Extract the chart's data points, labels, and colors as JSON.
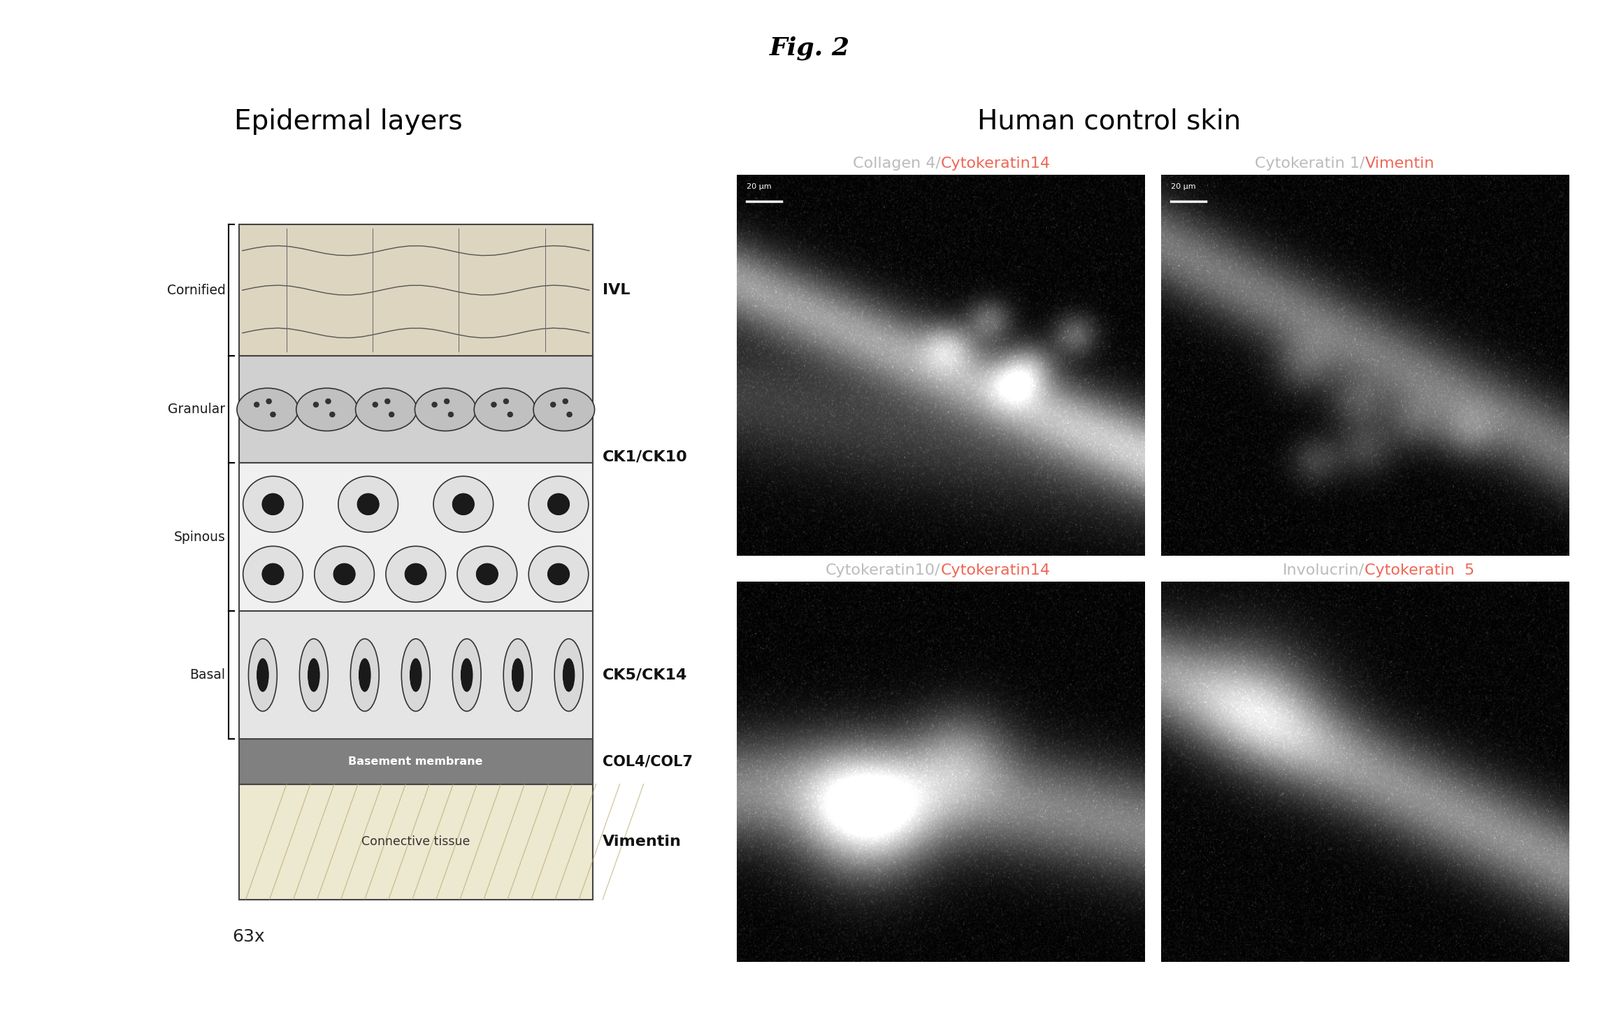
{
  "fig_title": "Fig. 2",
  "left_title": "Epidermal layers",
  "right_title": "Human control skin",
  "layer_labels_left": [
    "Cornified",
    "Granular",
    "Spinous",
    "Basal"
  ],
  "layer_labels_right": [
    "IVL",
    "CK1/CK10",
    "CK5/CK14",
    "COL4/COL7",
    "Vimentin"
  ],
  "basement_label": "Basement membrane",
  "connective_label": "Connective tissue",
  "micro_title_part1": [
    "Collagen 4/",
    "Cytokeratin 1/",
    "Cytokeratin10/",
    "Involucrin/"
  ],
  "micro_title_part2": [
    "Cytokeratin14",
    "Vimentin",
    "Cytokeratin14",
    "Cytokeratin  5"
  ],
  "scale_bar_text": "20 μm",
  "magnification": "63x",
  "bg_color": "#ffffff",
  "title_color_part1": "#bbbbbb",
  "title_color_part2": "#ee6655"
}
